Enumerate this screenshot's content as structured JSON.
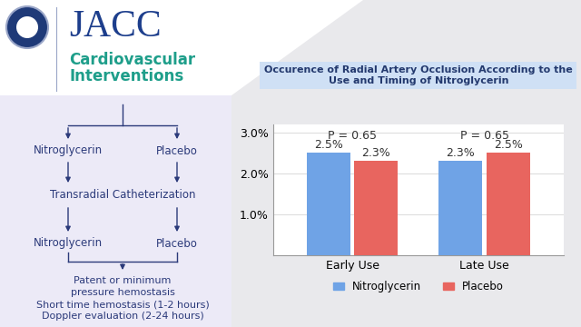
{
  "header": {
    "journal": "JACC",
    "section": [
      "Cardiovascular",
      "Interventions"
    ]
  },
  "flowchart": {
    "arms_before": [
      "Nitroglycerin",
      "Placebo"
    ],
    "procedure": "Transradial Catheterization",
    "arms_after": [
      "Nitroglycerin",
      "Placebo"
    ],
    "outcome": [
      "Patent or minimum",
      "pressure hemostasis",
      "Short time hemostasis (1-2 hours)",
      "Doppler evaluation (2-24 hours)"
    ]
  },
  "chart_data": {
    "type": "bar",
    "title": "Occurence of Radial Artery Occlusion According to the Use and Timing of Nitroglycerin",
    "categories": [
      "Early Use",
      "Late Use"
    ],
    "series": [
      {
        "name": "Nitroglycerin",
        "color": "#6fa3e6",
        "values": [
          2.5,
          2.3
        ],
        "value_labels": [
          "2.5%",
          "2.3%"
        ]
      },
      {
        "name": "Placebo",
        "color": "#e8655f",
        "values": [
          2.3,
          2.5
        ],
        "value_labels": [
          "2.3%",
          "2.5%"
        ]
      }
    ],
    "annotations": [
      "P = 0.65",
      "P = 0.65"
    ],
    "ylim": [
      0,
      3.2
    ],
    "yticks": [
      {
        "value": 1.0,
        "label": "1.0%"
      },
      {
        "value": 2.0,
        "label": "2.0%"
      },
      {
        "value": 3.0,
        "label": "3.0%"
      }
    ],
    "grid": true,
    "legend": "lower center",
    "data_labels": true
  }
}
